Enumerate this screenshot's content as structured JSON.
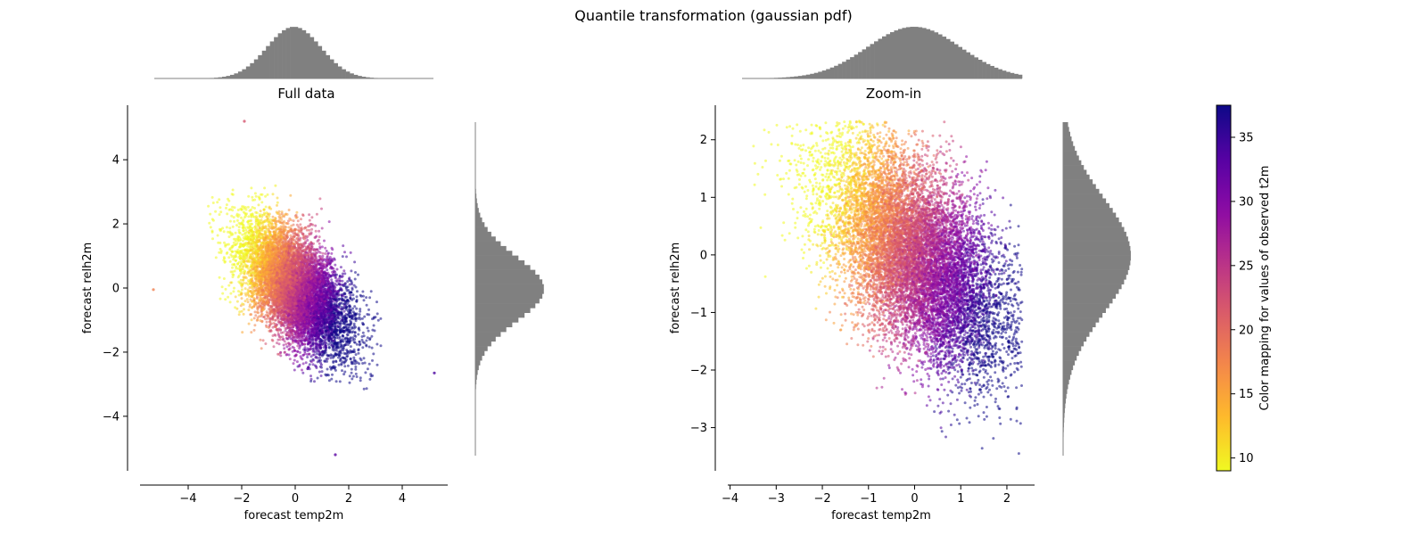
{
  "figure": {
    "suptitle": "Quantile transformation (gaussian pdf)"
  },
  "chart_data": [
    {
      "type": "scatter",
      "title": "Full data",
      "xlabel": "forecast temp2m",
      "ylabel": "forecast relh2m",
      "xlim": [
        -5.8,
        5.7
      ],
      "ylim": [
        -5.7,
        5.7
      ],
      "xticks": [
        -4,
        -2,
        0,
        2,
        4
      ],
      "yticks": [
        -4,
        -2,
        0,
        2,
        4
      ],
      "color_variable": "observed t2m",
      "colormap": "plasma_r",
      "cluster": {
        "x_mean": 0.0,
        "y_mean": 0.0,
        "correlation": -0.55,
        "clip": 3.2
      },
      "outliers": [
        {
          "x": -5.3,
          "y": -0.05,
          "c": 18
        },
        {
          "x": 5.2,
          "y": -2.65,
          "c": 34
        },
        {
          "x": -1.9,
          "y": 5.2,
          "c": 22
        },
        {
          "x": 1.5,
          "y": -5.2,
          "c": 33
        }
      ],
      "marginal_x": {
        "type": "histogram",
        "distribution": "gaussian",
        "mean": 0,
        "std": 1,
        "range": [
          -5.2,
          5.2
        ]
      },
      "marginal_y": {
        "type": "histogram",
        "distribution": "gaussian",
        "mean": 0,
        "std": 1,
        "range": [
          -5.2,
          5.2
        ]
      }
    },
    {
      "type": "scatter",
      "title": "Zoom-in",
      "xlabel": "forecast temp2m",
      "ylabel": "forecast relh2m",
      "xlim": [
        -4.05,
        2.6
      ],
      "ylim": [
        -3.75,
        2.6
      ],
      "xticks": [
        -4,
        -3,
        -2,
        -1,
        0,
        1,
        2
      ],
      "yticks": [
        -3,
        -2,
        -1,
        0,
        1,
        2
      ],
      "color_variable": "observed t2m",
      "colormap": "plasma_r",
      "cluster": {
        "x_mean": 0.0,
        "y_mean": 0.0,
        "correlation": -0.55,
        "x_clip": [
          -3.8,
          2.33
        ],
        "y_clip": [
          -3.5,
          2.33
        ]
      },
      "marginal_x": {
        "type": "histogram",
        "distribution": "gaussian",
        "mean": 0,
        "std": 1,
        "range": [
          -3.7,
          2.33
        ]
      },
      "marginal_y": {
        "type": "histogram",
        "distribution": "gaussian",
        "mean": 0,
        "std": 1,
        "range": [
          -3.5,
          2.33
        ]
      }
    }
  ],
  "colorbar": {
    "label": "Color mapping for values of observed t2m",
    "range": [
      9,
      37.5
    ],
    "ticks": [
      10,
      15,
      20,
      25,
      30,
      35
    ],
    "colormap": "plasma_r"
  },
  "colors": {
    "histogram": "#808080",
    "axis": "#000000"
  }
}
